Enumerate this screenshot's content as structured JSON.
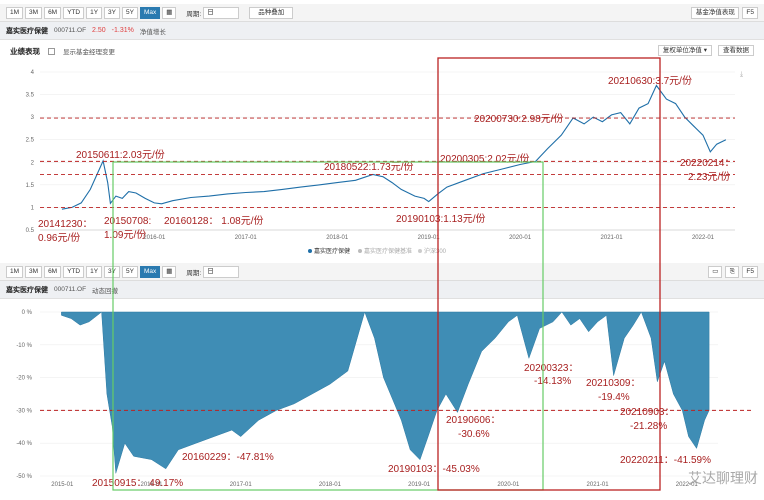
{
  "top_toolbar": {
    "ranges": [
      "1M",
      "3M",
      "6M",
      "YTD",
      "1Y",
      "3Y",
      "5Y",
      "Max"
    ],
    "active_range": "Max",
    "period_label": "周期:",
    "period_value": "日",
    "compare_button": "品种叠加",
    "nav_table_button": "基金净值表现",
    "refresh_button": "F5"
  },
  "top_title": {
    "fund_name": "嘉实医疗保健",
    "fund_code": "000711.OF",
    "nav": "2.50",
    "change": "-1.31%",
    "subtitle": "净值增长"
  },
  "perf_bar": {
    "title": "业绩表现",
    "checkbox_label": "显示基金经理变更",
    "nav_type": "复权单位净值",
    "view_data": "查看数据"
  },
  "bottom_toolbar": {
    "ranges": [
      "1M",
      "3M",
      "6M",
      "YTD",
      "1Y",
      "3Y",
      "5Y",
      "Max"
    ],
    "active_range": "Max",
    "period_label": "周期:",
    "period_value": "日",
    "refresh_button": "F5"
  },
  "bottom_title": {
    "fund_name": "嘉实医疗保健",
    "fund_code": "000711.OF",
    "subtitle": "动态回撤"
  },
  "watermark": "艾达聊理财",
  "chart_data": [
    {
      "type": "line",
      "ylim": [
        0.5,
        4
      ],
      "yticks": [
        "0.5",
        "1",
        "1.5",
        "2",
        "2.5",
        "3",
        "3.5",
        "4"
      ],
      "xticks": [
        "2016-01",
        "2017-01",
        "2018-01",
        "2019-01",
        "2020-01",
        "2021-01",
        "2022-01"
      ],
      "legend": [
        "嘉实医疗保健",
        "嘉实医疗保健基准",
        "沪深300"
      ],
      "series": [
        {
          "name": "嘉实医疗保健",
          "color": "#1f6fa8",
          "x": [
            2014.99,
            2015.1,
            2015.2,
            2015.3,
            2015.44,
            2015.49,
            2015.52,
            2015.58,
            2015.65,
            2015.72,
            2015.8,
            2015.9,
            2016.0,
            2016.08,
            2016.2,
            2016.4,
            2016.6,
            2016.8,
            2017.0,
            2017.2,
            2017.4,
            2017.6,
            2017.8,
            2018.0,
            2018.2,
            2018.39,
            2018.5,
            2018.6,
            2018.7,
            2018.85,
            2018.95,
            2019.0,
            2019.1,
            2019.2,
            2019.4,
            2019.6,
            2019.8,
            2020.0,
            2020.17,
            2020.3,
            2020.45,
            2020.58,
            2020.7,
            2020.8,
            2020.9,
            2021.0,
            2021.1,
            2021.2,
            2021.3,
            2021.4,
            2021.49,
            2021.6,
            2021.7,
            2021.8,
            2021.9,
            2022.0,
            2022.08,
            2022.15,
            2022.25
          ],
          "values": [
            0.96,
            1.0,
            1.1,
            1.4,
            2.03,
            1.55,
            1.09,
            1.25,
            1.2,
            1.35,
            1.32,
            1.2,
            1.1,
            1.08,
            1.15,
            1.22,
            1.25,
            1.3,
            1.33,
            1.35,
            1.4,
            1.45,
            1.5,
            1.55,
            1.6,
            1.73,
            1.68,
            1.55,
            1.4,
            1.25,
            1.2,
            1.13,
            1.3,
            1.45,
            1.6,
            1.75,
            1.85,
            1.95,
            2.02,
            2.3,
            2.6,
            2.98,
            2.85,
            3.0,
            2.9,
            3.05,
            3.1,
            2.85,
            3.2,
            3.3,
            3.7,
            3.4,
            3.3,
            3.0,
            2.8,
            2.6,
            2.23,
            2.4,
            2.5
          ]
        }
      ],
      "annotations": [
        "20141230：0.96元/份",
        "20150611:2.03元/份",
        "20150708: 1.09元/份",
        "20160128： 1.08元/份",
        "20180522:1.73元/份",
        "20190103:1.13元/份",
        "20200305:2.02元/份",
        "20200730:2.98元/份",
        "20210630:3.7元/份",
        "20220214：2.23元/份"
      ]
    },
    {
      "type": "area",
      "ylim": [
        -50,
        0
      ],
      "yticks": [
        "0 %",
        "-10 %",
        "-20 %",
        "-30 %",
        "-40 %",
        "-50 %"
      ],
      "xticks": [
        "2015-01",
        "2016-01",
        "2017-01",
        "2018-01",
        "2019-01",
        "2020-01",
        "2021-01",
        "2022-01"
      ],
      "series": [
        {
          "name": "动态回撤",
          "color": "#3f8db5",
          "x": [
            2014.99,
            2015.1,
            2015.2,
            2015.3,
            2015.44,
            2015.5,
            2015.56,
            2015.6,
            2015.7,
            2015.8,
            2016.0,
            2016.16,
            2016.3,
            2016.5,
            2016.7,
            2016.9,
            2017.0,
            2017.2,
            2017.4,
            2017.6,
            2017.8,
            2018.0,
            2018.2,
            2018.39,
            2018.5,
            2018.6,
            2018.8,
            2018.9,
            2019.01,
            2019.1,
            2019.2,
            2019.3,
            2019.43,
            2019.55,
            2019.7,
            2019.85,
            2020.0,
            2020.1,
            2020.23,
            2020.35,
            2020.5,
            2020.6,
            2020.7,
            2020.8,
            2020.9,
            2021.0,
            2021.1,
            2021.18,
            2021.3,
            2021.4,
            2021.49,
            2021.6,
            2021.67,
            2021.75,
            2021.85,
            2021.95,
            2022.02,
            2022.11,
            2022.2,
            2022.25
          ],
          "values": [
            -1,
            -2,
            -4,
            -3,
            0,
            -25,
            -35,
            -49.17,
            -40,
            -44,
            -45,
            -47.81,
            -42,
            -40,
            -38,
            -36,
            -38,
            -33,
            -30,
            -28,
            -25,
            -22,
            -18,
            0,
            -8,
            -20,
            -33,
            -42,
            -45.03,
            -38,
            -30,
            -25,
            -30.6,
            -22,
            -12,
            -8,
            -3,
            -1,
            -14.13,
            -5,
            -3,
            0,
            -4,
            -2,
            -6,
            -3,
            -1,
            -19.4,
            -8,
            -4,
            0,
            -8,
            -21.28,
            -15,
            -25,
            -30,
            -38,
            -41.59,
            -33,
            -30
          ]
        }
      ],
      "annotations": [
        "20150915： 49.17%",
        "20160229：-47.81%",
        "20190103：-45.03%",
        "20190606：-30.6%",
        "20200323：-14.13%",
        "20210309：-19.4%",
        "20210903：-21.28%",
        "20220211：-41.59%"
      ]
    }
  ]
}
